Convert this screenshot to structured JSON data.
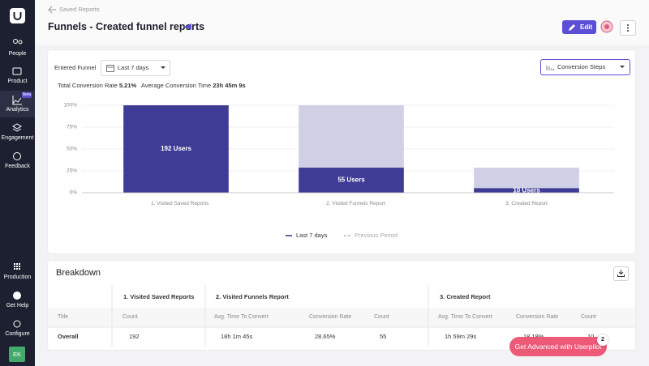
{
  "sidebar": {
    "nav": [
      "People",
      "Product",
      "Analytics",
      "Engagement",
      "Feedback"
    ],
    "badge": "Beta",
    "bottom": [
      "Production",
      "Get Help",
      "Configure"
    ],
    "avatar": "EK"
  },
  "header": {
    "back": "Saved Reports",
    "title": "Funnels - Created funnel reports",
    "edit": "Edit"
  },
  "filters": {
    "label": "Entered Funnel",
    "date_range": "Last 7 days",
    "view": "Conversion Steps"
  },
  "stats": [
    {
      "label": "Total Conversion Rate",
      "value": "5.21%"
    },
    {
      "label": "Average Conversion Time",
      "value": "23h 45m 9s"
    }
  ],
  "chart_data": {
    "type": "bar",
    "categories": [
      "1. Visited Saved Reports",
      "2. Visited Funnels Report",
      "3. Created Report"
    ],
    "series": [
      {
        "name": "Last 7 days",
        "color": "#3f3c96",
        "line_style": "solid",
        "values": [
          100,
          28.65,
          5.21
        ]
      },
      {
        "name": "Previous Period",
        "color": "#cfcfe6",
        "line_style": "dashed",
        "values": [
          100,
          100,
          28.65
        ]
      }
    ],
    "data_labels": [
      "192 Users",
      "55 Users",
      "10 Users"
    ],
    "ylim": [
      0,
      100
    ],
    "yticks": [
      {
        "value": 0,
        "label": "0%"
      },
      {
        "value": 25,
        "label": "25%"
      },
      {
        "value": 50,
        "label": "50%"
      },
      {
        "value": 75,
        "label": "75%"
      },
      {
        "value": 100,
        "label": "100%"
      }
    ],
    "grid": true
  },
  "breakdown": {
    "title": "Breakdown",
    "groups": [
      "1. Visited Saved Reports",
      "2. Visited Funnels Report",
      "3. Created Report"
    ],
    "columns": [
      "Title",
      "Count",
      "Avg. Time To Convert",
      "Conversion Rate",
      "Count",
      "Avg. Time To Convert",
      "Conversion Rate",
      "Count"
    ],
    "rows": [
      [
        "Overall",
        "192",
        "18h 1m 45s",
        "28.65%",
        "55",
        "1h 59m 29s",
        "18.18%",
        "10"
      ]
    ]
  },
  "promo": {
    "text": "Get Advanced with Userpilot",
    "badge": "2"
  }
}
